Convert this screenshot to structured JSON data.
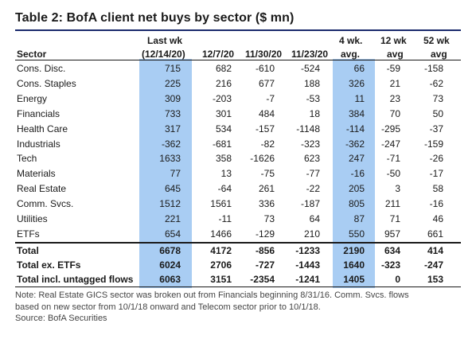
{
  "title": "Table 2: BofA client net buys by sector ($ mn)",
  "headers": {
    "sector": "Sector",
    "c1_top": "Last wk",
    "c1_bot": "(12/14/20)",
    "c2": "12/7/20",
    "c3": "11/30/20",
    "c4": "11/23/20",
    "c5_top": "4 wk.",
    "c5_bot": "avg.",
    "c6_top": "12 wk",
    "c6_bot": "avg",
    "c7_top": "52 wk",
    "c7_bot": "avg"
  },
  "rows": [
    {
      "sector": "Cons. Disc.",
      "v": [
        "715",
        "682",
        "-610",
        "-524",
        "66",
        "-59",
        "-158"
      ]
    },
    {
      "sector": "Cons. Staples",
      "v": [
        "225",
        "216",
        "677",
        "188",
        "326",
        "21",
        "-62"
      ]
    },
    {
      "sector": "Energy",
      "v": [
        "309",
        "-203",
        "-7",
        "-53",
        "11",
        "23",
        "73"
      ]
    },
    {
      "sector": "Financials",
      "v": [
        "733",
        "301",
        "484",
        "18",
        "384",
        "70",
        "50"
      ]
    },
    {
      "sector": "Health Care",
      "v": [
        "317",
        "534",
        "-157",
        "-1148",
        "-114",
        "-295",
        "-37"
      ]
    },
    {
      "sector": "Industrials",
      "v": [
        "-362",
        "-681",
        "-82",
        "-323",
        "-362",
        "-247",
        "-159"
      ]
    },
    {
      "sector": "Tech",
      "v": [
        "1633",
        "358",
        "-1626",
        "623",
        "247",
        "-71",
        "-26"
      ]
    },
    {
      "sector": "Materials",
      "v": [
        "77",
        "13",
        "-75",
        "-77",
        "-16",
        "-50",
        "-17"
      ]
    },
    {
      "sector": "Real Estate",
      "v": [
        "645",
        "-64",
        "261",
        "-22",
        "205",
        "3",
        "58"
      ]
    },
    {
      "sector": "Comm. Svcs.",
      "v": [
        "1512",
        "1561",
        "336",
        "-187",
        "805",
        "211",
        "-16"
      ]
    },
    {
      "sector": "Utilities",
      "v": [
        "221",
        "-11",
        "73",
        "64",
        "87",
        "71",
        "46"
      ]
    },
    {
      "sector": "ETFs",
      "v": [
        "654",
        "1466",
        "-129",
        "210",
        "550",
        "957",
        "661"
      ]
    }
  ],
  "totals": [
    {
      "sector": "Total",
      "v": [
        "6678",
        "4172",
        "-856",
        "-1233",
        "2190",
        "634",
        "414"
      ]
    },
    {
      "sector": "Total ex. ETFs",
      "v": [
        "6024",
        "2706",
        "-727",
        "-1443",
        "1640",
        "-323",
        "-247"
      ]
    },
    {
      "sector": "Total incl. untagged flows",
      "v": [
        "6063",
        "3151",
        "-2354",
        "-1241",
        "1405",
        "0",
        "153"
      ]
    }
  ],
  "notes": [
    "Note: Real Estate GICS sector was broken out from Financials beginning 8/31/16. Comm. Svcs. flows",
    "based on new sector from 10/1/18 onward and Telecom sector prior to 10/1/18.",
    "Source: BofA Securities"
  ]
}
